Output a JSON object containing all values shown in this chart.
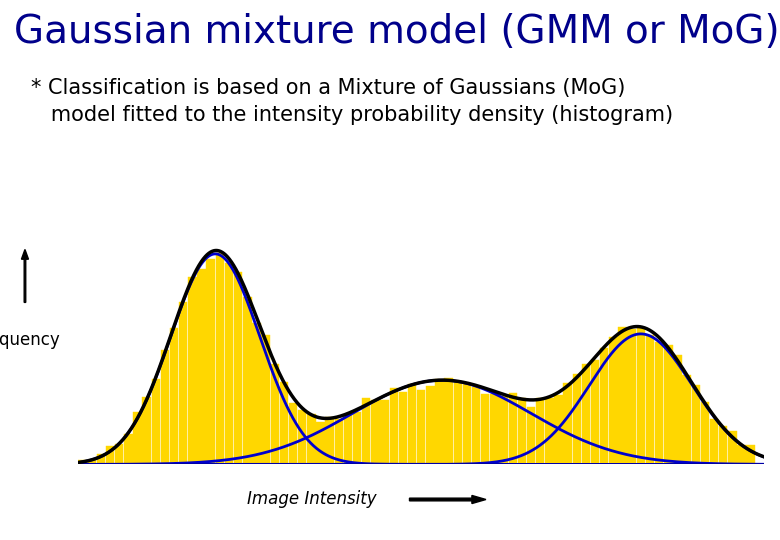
{
  "title": "Gaussian mixture model (GMM or MoG)",
  "title_color": "#00008B",
  "title_fontsize": 28,
  "subtitle_line1": "* Classification is based on a Mixture of Gaussians (MoG)",
  "subtitle_line2": "   model fitted to the intensity probability density (histogram)",
  "subtitle_fontsize": 15,
  "ylabel": "Frequency",
  "xlabel": "Image Intensity",
  "bg_color": "#ffffff",
  "bar_color": "#FFD700",
  "bar_edge_color": "#FFD700",
  "curve_color_black": "#000000",
  "curve_color_blue": "#0000CD",
  "gauss1_mean": 0.2,
  "gauss1_std": 0.065,
  "gauss1_amp": 1.0,
  "gauss2_mean": 0.53,
  "gauss2_std": 0.13,
  "gauss2_amp": 0.4,
  "gauss3_mean": 0.82,
  "gauss3_std": 0.075,
  "gauss3_amp": 0.62,
  "n_bars": 75
}
